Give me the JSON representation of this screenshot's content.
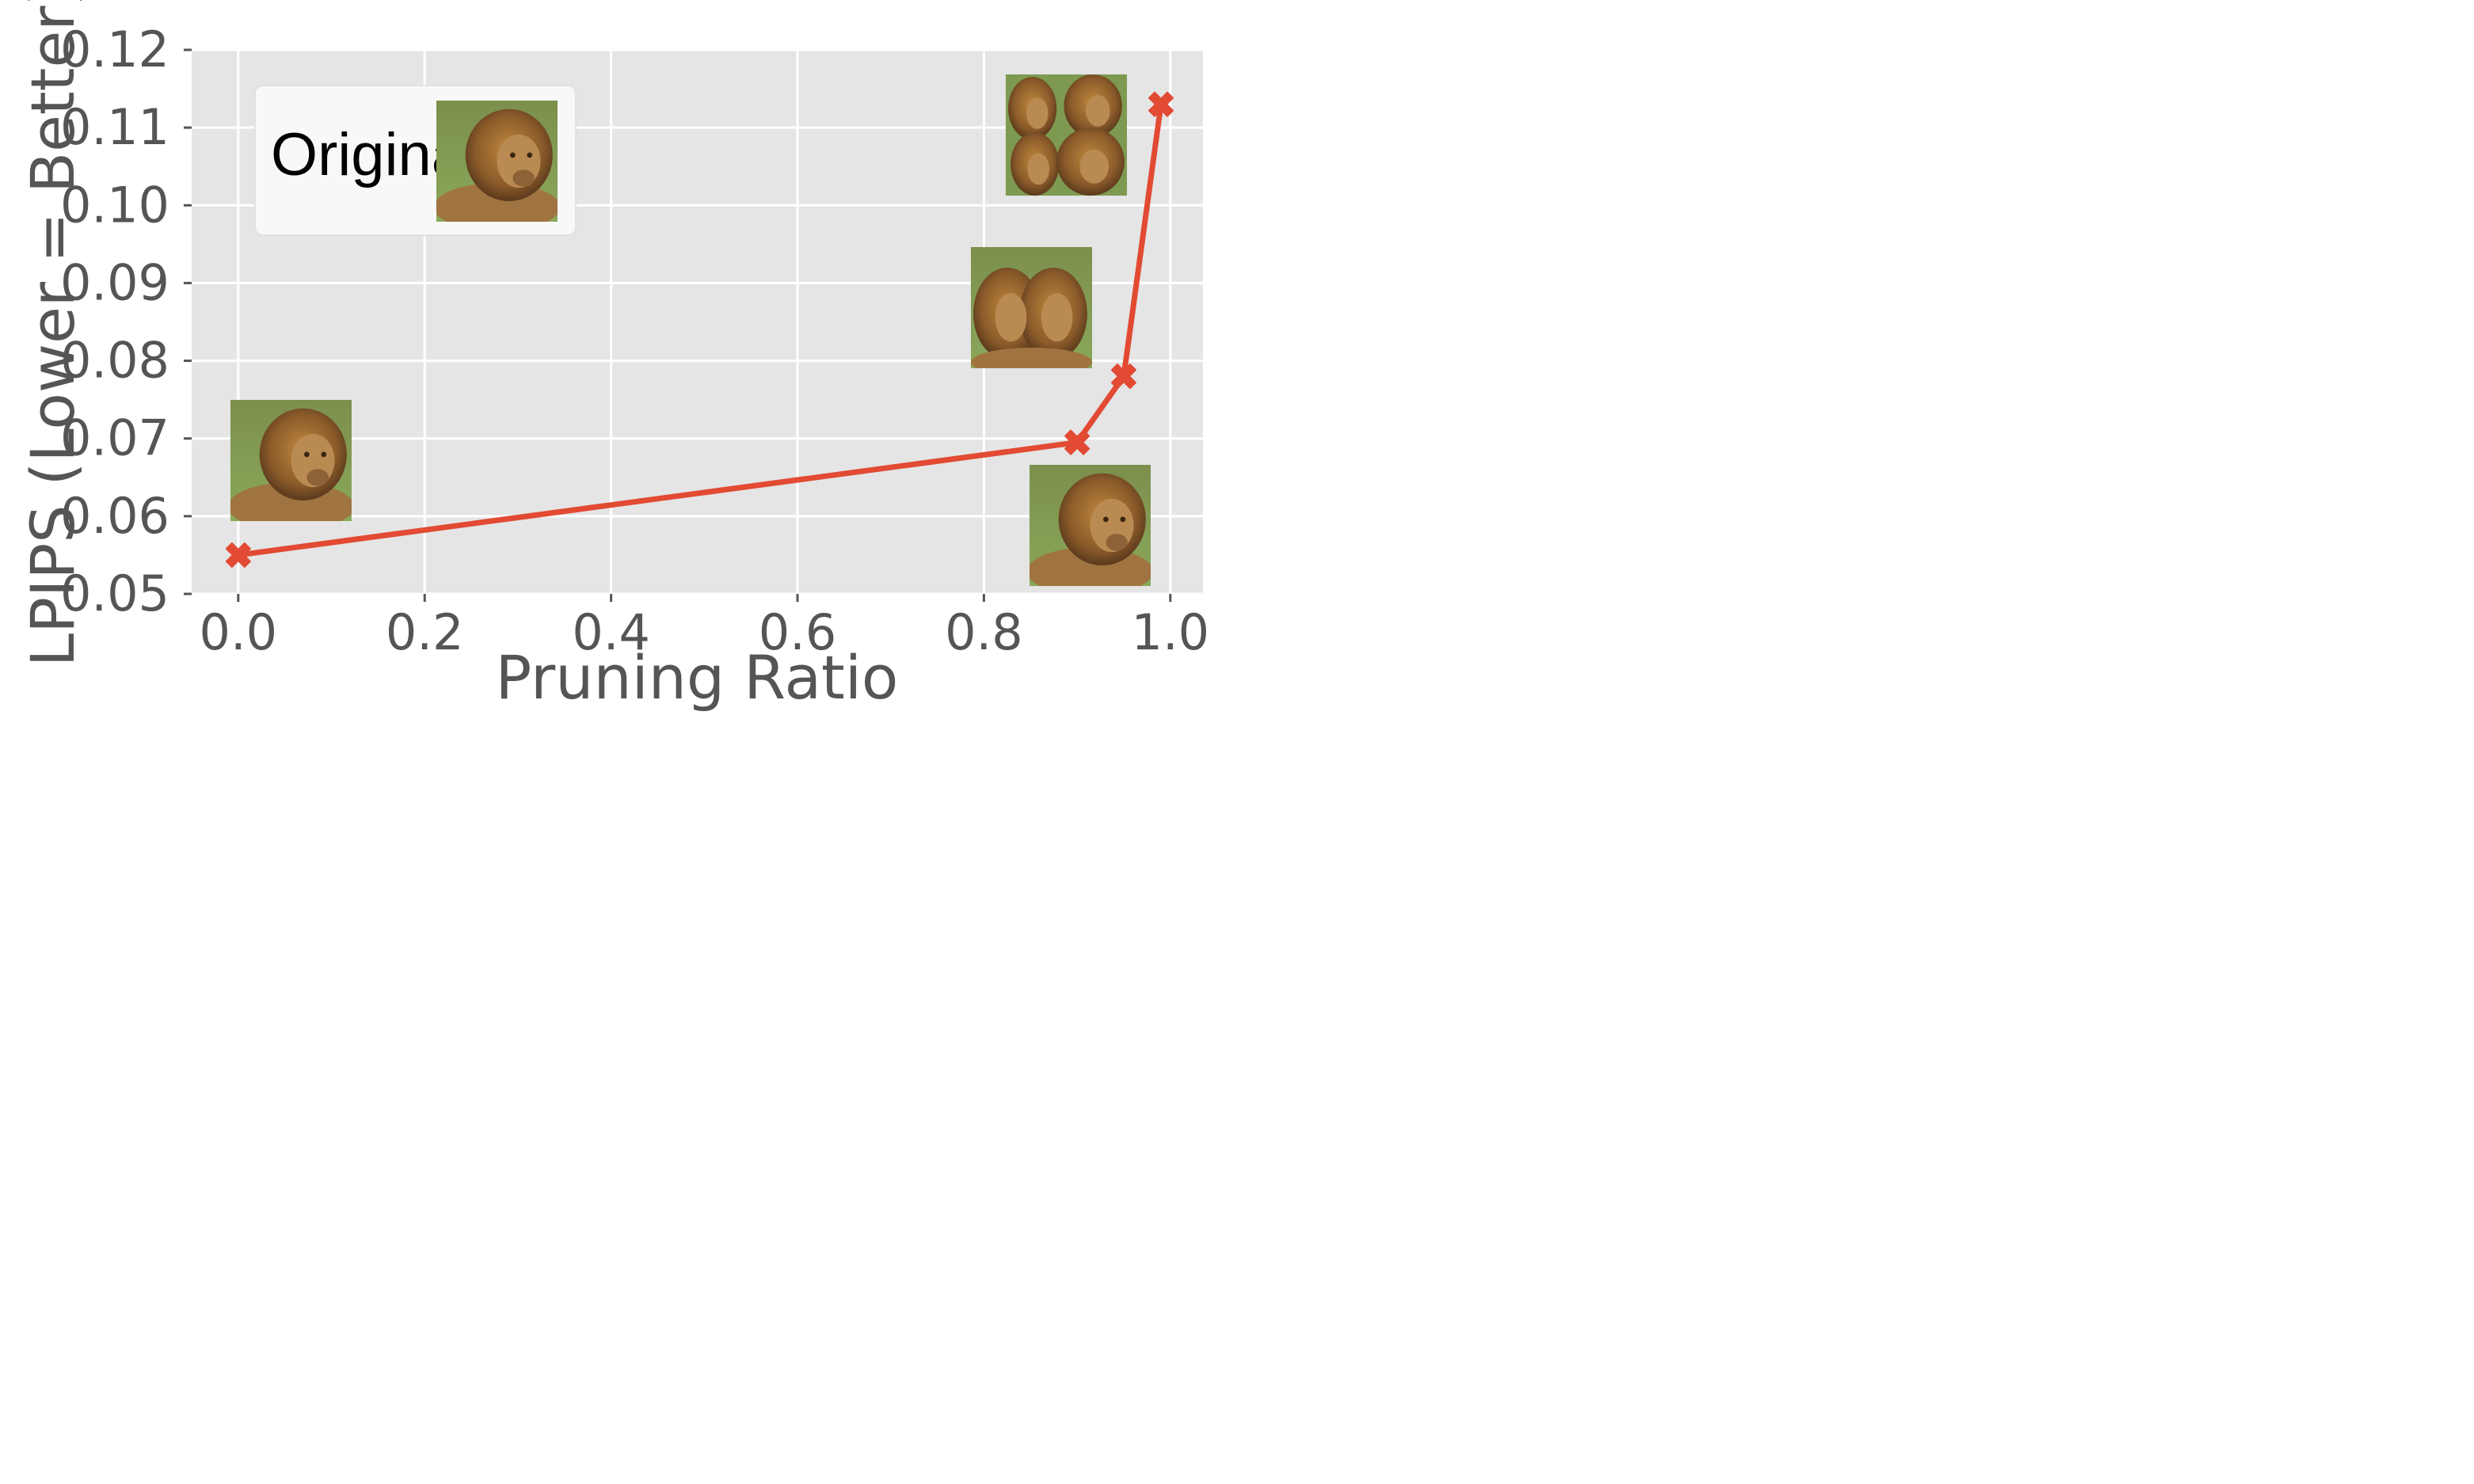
{
  "chart_data": {
    "type": "line",
    "title": "",
    "xlabel": "Pruning Ratio",
    "ylabel": "LPIPS (Lower = Better)",
    "xlim": [
      -0.05,
      1.035
    ],
    "ylim": [
      0.05,
      0.12
    ],
    "xticks": [
      "0.0",
      "0.2",
      "0.4",
      "0.6",
      "0.8",
      "1.0"
    ],
    "xtick_values": [
      0.0,
      0.2,
      0.4,
      0.6,
      0.8,
      1.0
    ],
    "yticks": [
      "0.05",
      "0.06",
      "0.07",
      "0.08",
      "0.09",
      "0.10",
      "0.11",
      "0.12"
    ],
    "ytick_values": [
      0.05,
      0.06,
      0.07,
      0.08,
      0.09,
      0.1,
      0.11,
      0.12
    ],
    "grid": true,
    "series": [
      {
        "x": [
          0.0,
          0.9,
          0.95,
          0.99
        ],
        "y": [
          0.055,
          0.0695,
          0.078,
          0.113
        ],
        "color": "#E24A33",
        "marker": "X"
      }
    ],
    "legend": {
      "text": "Original:",
      "placement": "top-left"
    },
    "annotations": [
      {
        "type": "thumbnail",
        "name": "lion-thumbnail-original"
      },
      {
        "type": "thumbnail",
        "name": "lion-thumbnail-ratio-0"
      },
      {
        "type": "thumbnail",
        "name": "lion-thumbnail-ratio-0.9"
      },
      {
        "type": "thumbnail",
        "name": "lion-thumbnail-ratio-0.95"
      },
      {
        "type": "thumbnail",
        "name": "lion-thumbnail-ratio-0.99"
      }
    ],
    "colors": {
      "background": "#E5E5E5",
      "grid": "#FFFFFF",
      "line": "#E24A33",
      "text": "#555555"
    }
  }
}
